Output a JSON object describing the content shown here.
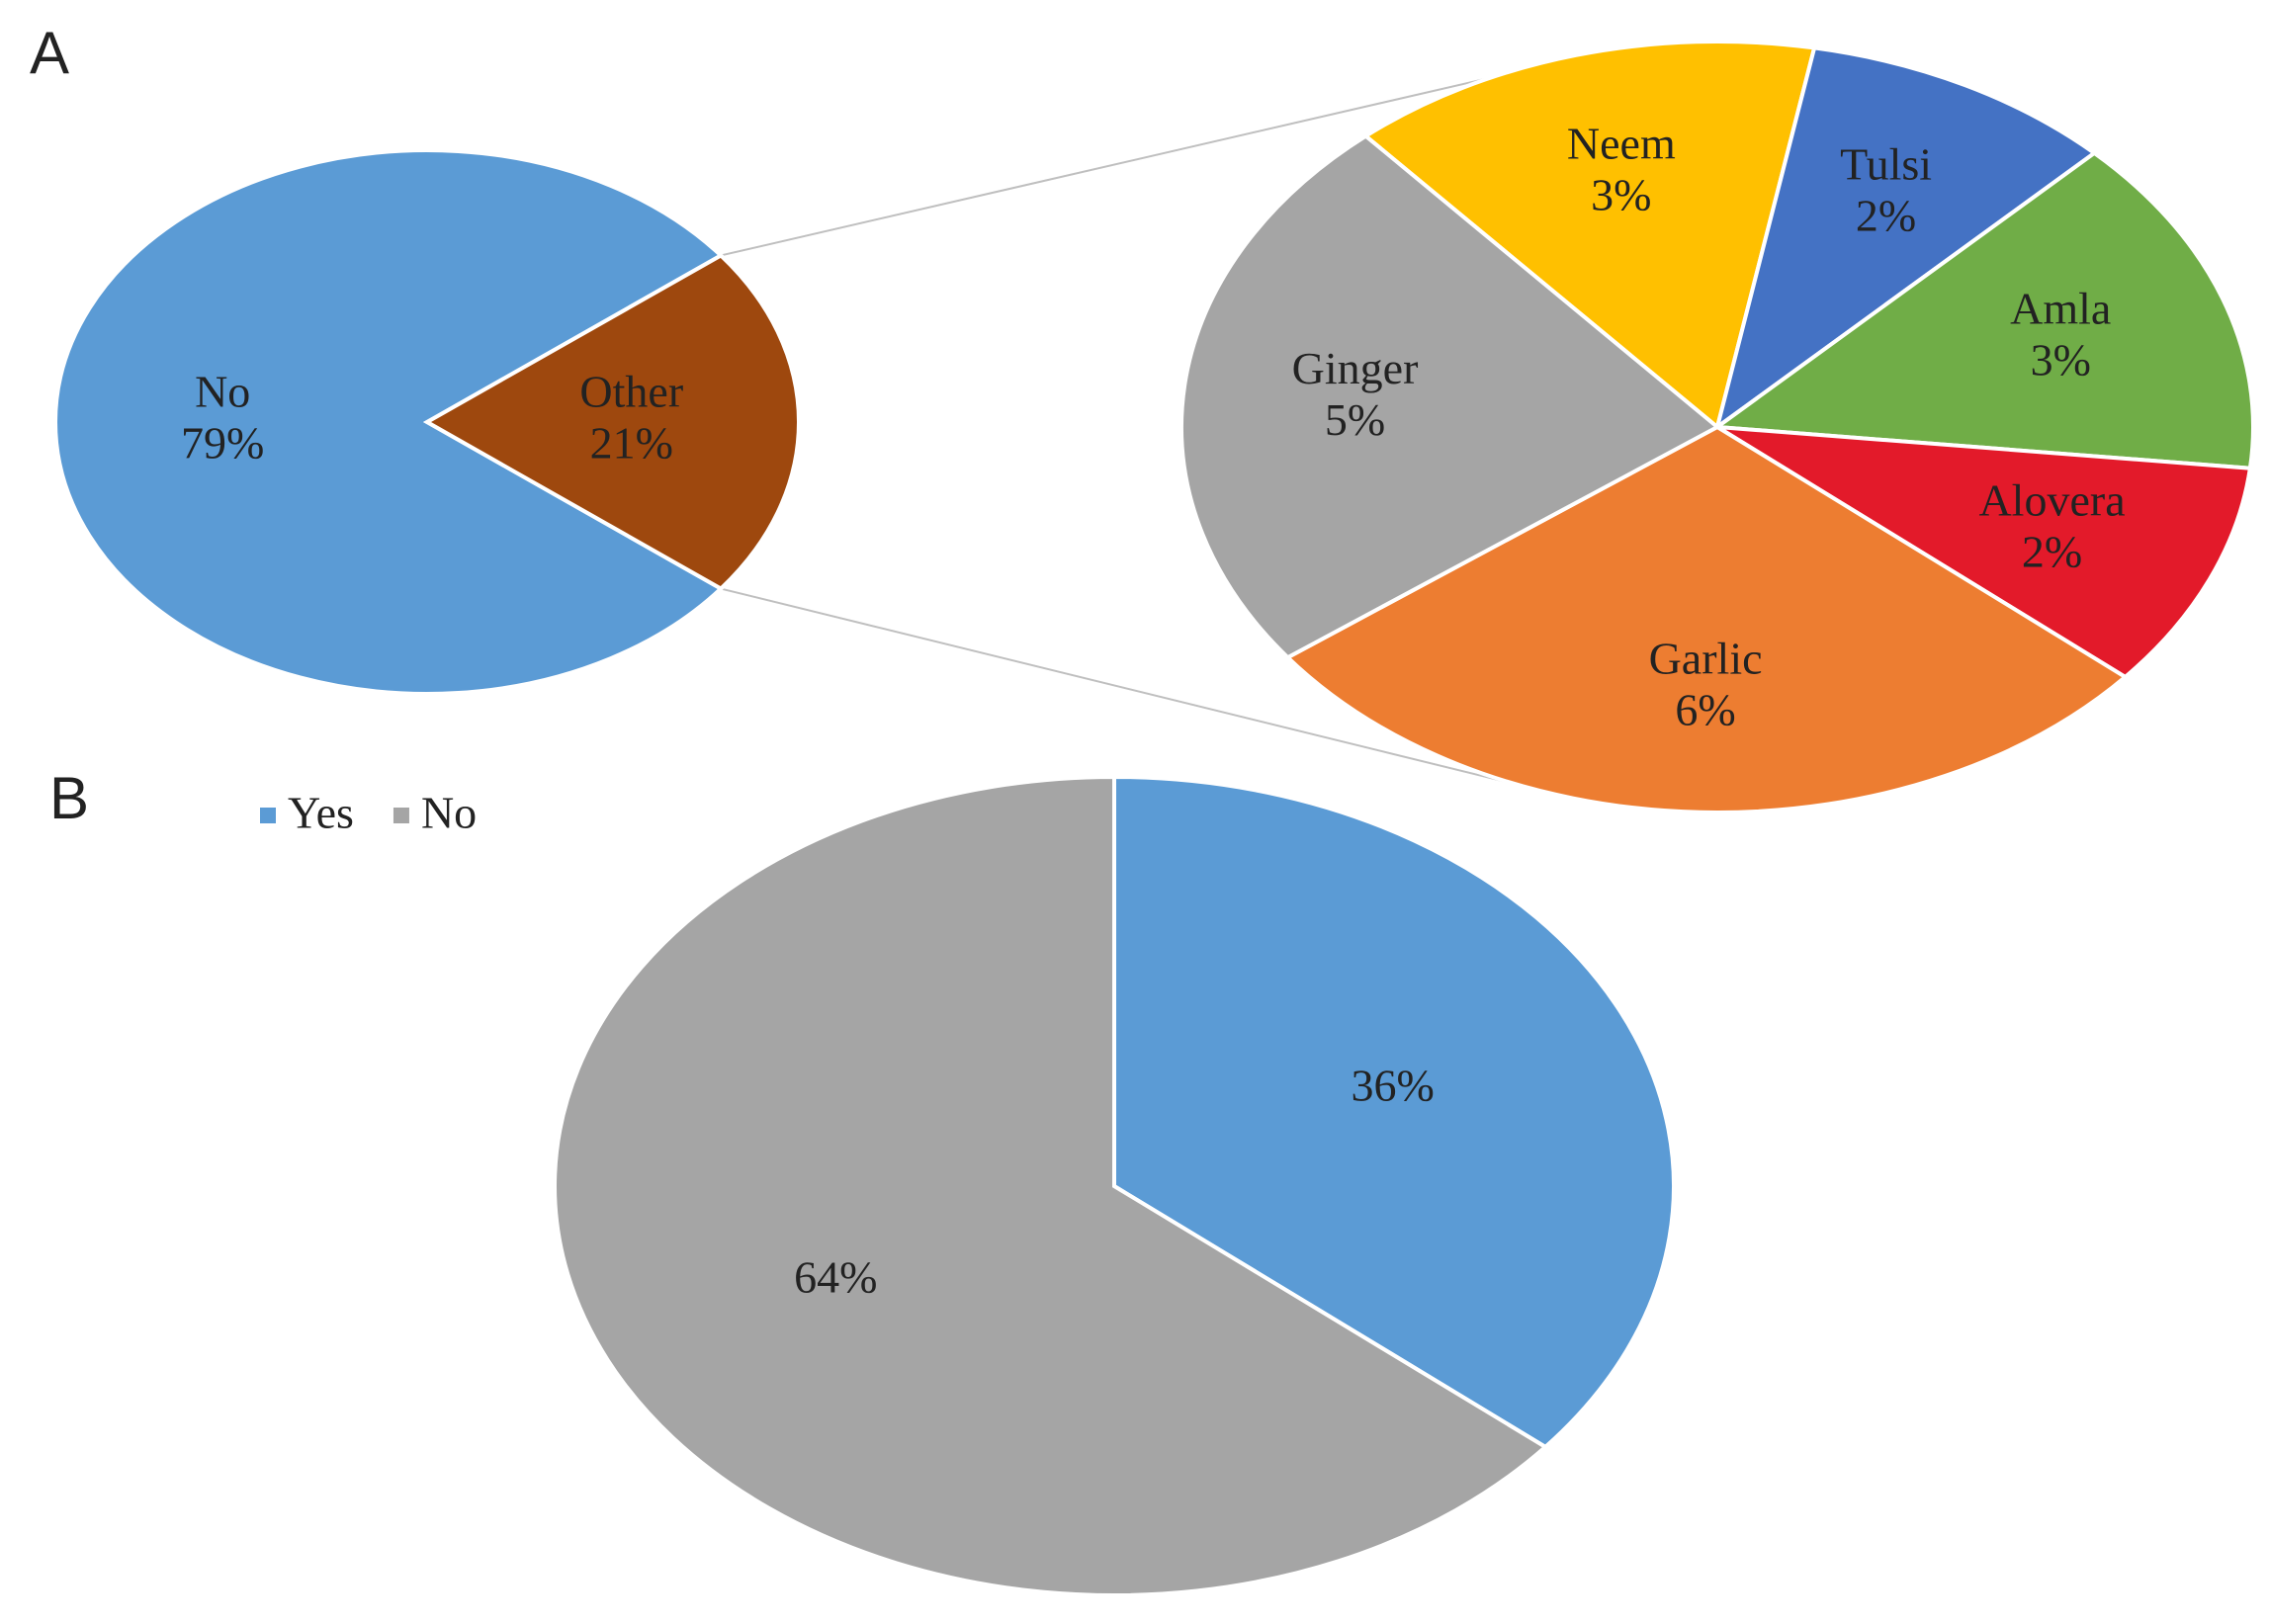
{
  "chart_data": [
    {
      "type": "pie",
      "panel_label": "A",
      "categories": [
        "No",
        "Other"
      ],
      "values": [
        79,
        21
      ],
      "value_labels": [
        "79%",
        "21%"
      ],
      "colors": [
        "#5b9bd5",
        "#9e480e"
      ]
    },
    {
      "type": "pie",
      "categories": [
        "Neem",
        "Tulsi",
        "Amla",
        "Alovera",
        "Garlic",
        "Ginger"
      ],
      "values": [
        3,
        2,
        3,
        2,
        6,
        5
      ],
      "value_labels": [
        "3%",
        "2%",
        "3%",
        "2%",
        "6%",
        "5%"
      ],
      "colors": [
        "#ffc000",
        "#4472c4",
        "#70ad47",
        "#e31a2a",
        "#ed7d31",
        "#a5a5a5"
      ]
    },
    {
      "type": "pie",
      "panel_label": "B",
      "categories": [
        "Yes",
        "No"
      ],
      "values": [
        36,
        64
      ],
      "value_labels": [
        "36%",
        "64%"
      ],
      "colors": [
        "#5b9bd5",
        "#a5a5a5"
      ],
      "legend": true
    }
  ]
}
